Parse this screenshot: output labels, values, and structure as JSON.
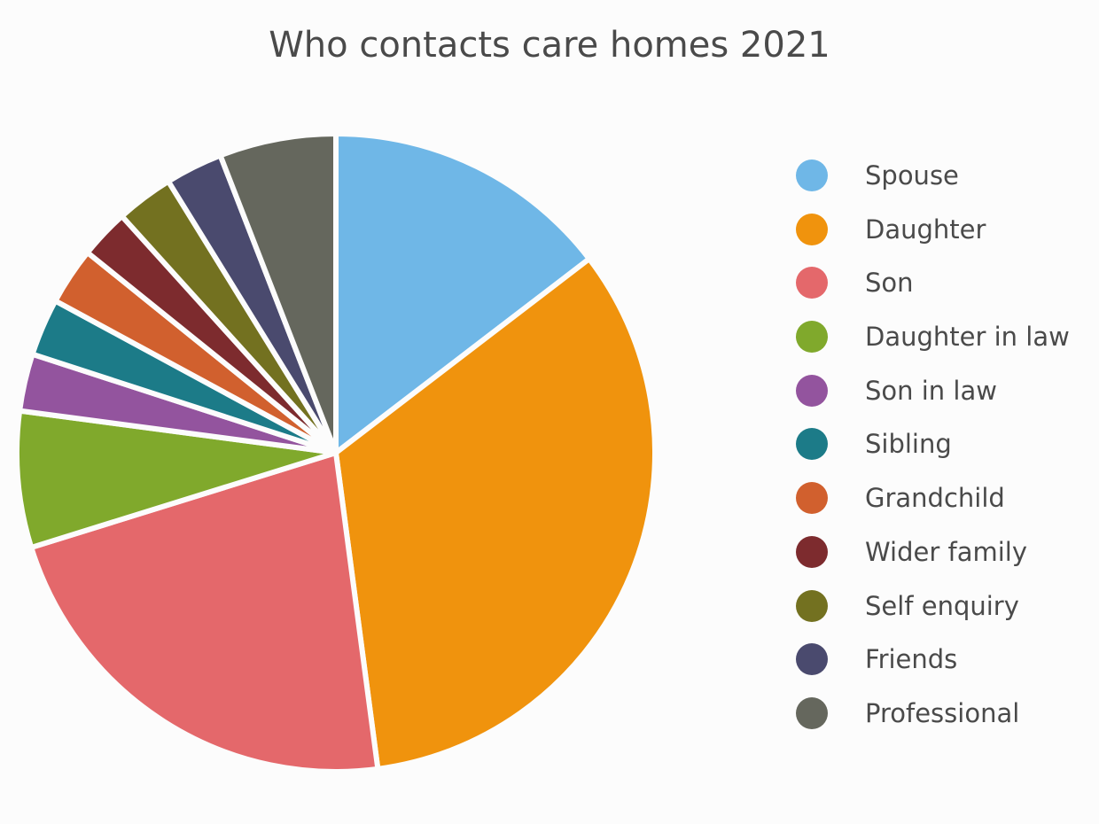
{
  "chart_data": {
    "type": "pie",
    "title": "Who contacts care homes 2021",
    "legend_position": "right",
    "slices": [
      {
        "label": "Spouse",
        "value": 14.6,
        "color": "#6fb7e7"
      },
      {
        "label": "Daughter",
        "value": 33.3,
        "color": "#f0930d"
      },
      {
        "label": "Son",
        "value": 22.3,
        "color": "#e4686b"
      },
      {
        "label": "Daughter in law",
        "value": 6.9,
        "color": "#80a92c"
      },
      {
        "label": "Son in law",
        "value": 2.9,
        "color": "#93549e"
      },
      {
        "label": "Sibling",
        "value": 2.9,
        "color": "#1c7b88"
      },
      {
        "label": "Grandchild",
        "value": 2.9,
        "color": "#d1602e"
      },
      {
        "label": "Wider family",
        "value": 2.5,
        "color": "#7d2b2e"
      },
      {
        "label": "Self enquiry",
        "value": 2.9,
        "color": "#737120"
      },
      {
        "label": "Friends",
        "value": 2.9,
        "color": "#4a4a6e"
      },
      {
        "label": "Professional",
        "value": 5.9,
        "color": "#65675d"
      }
    ]
  }
}
